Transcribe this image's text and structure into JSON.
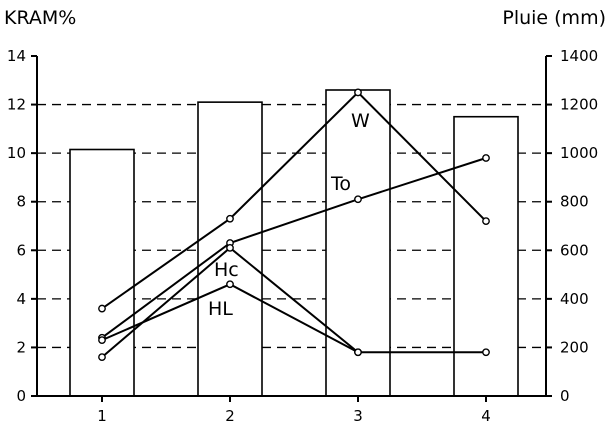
{
  "chart_data": {
    "type": "bar",
    "title_left": "KRAM%",
    "title_right": "Pluie (mm)",
    "categories": [
      "1",
      "2",
      "3",
      "4"
    ],
    "bars": {
      "axis": "right",
      "values": [
        1015,
        1210,
        1260,
        1150
      ]
    },
    "y_left": {
      "ylim": [
        0,
        14
      ],
      "ticks": [
        "0",
        "2",
        "4",
        "6",
        "8",
        "10",
        "12",
        "14"
      ]
    },
    "y_right": {
      "ylim": [
        0,
        1400
      ],
      "ticks": [
        "0",
        "200",
        "400",
        "600",
        "800",
        "1000",
        "1200",
        "1400"
      ]
    },
    "grid": "dashed horizontal at every left-axis tick",
    "line_series": [
      {
        "label": "W",
        "axis": "left",
        "x": [
          1,
          2,
          3,
          4
        ],
        "values": [
          3.6,
          7.3,
          12.5,
          7.2
        ]
      },
      {
        "label": "To",
        "axis": "left",
        "x": [
          1,
          2,
          3,
          4
        ],
        "values": [
          2.4,
          6.3,
          8.1,
          9.8
        ]
      },
      {
        "label": "Hc",
        "axis": "left",
        "x": [
          1,
          2,
          3,
          4
        ],
        "values": [
          1.6,
          6.1,
          1.8,
          1.8
        ]
      },
      {
        "label": "HL",
        "axis": "left",
        "x": [
          1,
          2,
          3
        ],
        "values": [
          2.3,
          4.6,
          1.8
        ]
      }
    ]
  }
}
